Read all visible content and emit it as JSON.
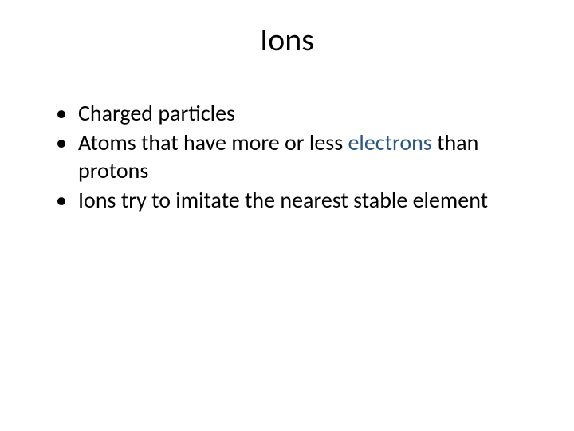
{
  "slide": {
    "title": "Ions",
    "bullets": [
      {
        "before": "Charged particles",
        "highlight": "",
        "after": ""
      },
      {
        "before": "Atoms that have more or less ",
        "highlight": "electrons",
        "after": " than protons"
      },
      {
        "before": "Ions try to imitate the nearest stable element",
        "highlight": "",
        "after": ""
      }
    ]
  },
  "styling": {
    "background_color": "#ffffff",
    "text_color": "#000000",
    "highlight_color": "#2a5885",
    "title_fontsize": 40,
    "body_fontsize": 28,
    "font_family": "Calibri"
  }
}
